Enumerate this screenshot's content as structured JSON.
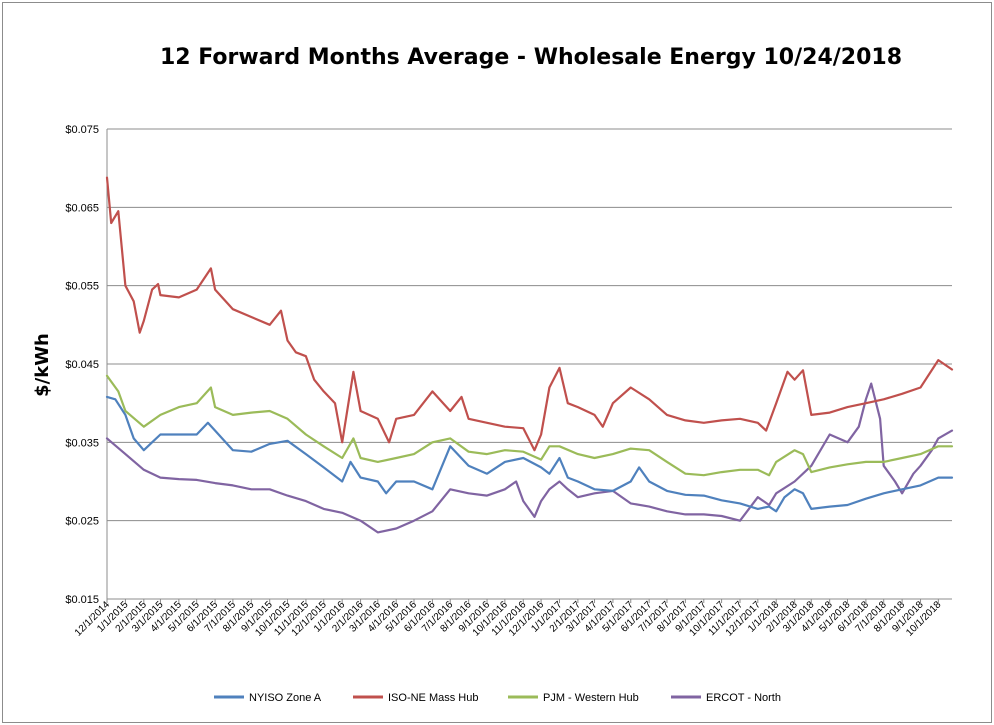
{
  "chart_data": {
    "type": "line",
    "title": "12 Forward Months Average - Wholesale Energy 10/24/2018",
    "ylabel": "$/kWh",
    "xlabel": "",
    "ylim": [
      0.015,
      0.075
    ],
    "y_ticks": [
      "$0.015",
      "$0.025",
      "$0.035",
      "$0.045",
      "$0.055",
      "$0.065",
      "$0.075"
    ],
    "y_tick_values": [
      0.015,
      0.025,
      0.035,
      0.045,
      0.055,
      0.065,
      0.075
    ],
    "xlim": [
      "12/1/2014",
      "10/24/2018"
    ],
    "grid": "horizontal",
    "legend_position": "bottom",
    "categories": [
      "12/1/2014",
      "1/1/2015",
      "2/1/2015",
      "3/1/2015",
      "4/1/2015",
      "5/1/2015",
      "6/1/2015",
      "7/1/2015",
      "8/1/2015",
      "9/1/2015",
      "10/1/2015",
      "11/1/2015",
      "12/1/2015",
      "1/1/2016",
      "2/1/2016",
      "3/1/2016",
      "4/1/2016",
      "5/1/2016",
      "6/1/2016",
      "7/1/2016",
      "8/1/2016",
      "9/1/2016",
      "10/1/2016",
      "11/1/2016",
      "12/1/2016",
      "1/1/2017",
      "2/1/2017",
      "3/1/2017",
      "4/1/2017",
      "5/1/2017",
      "6/1/2017",
      "7/1/2017",
      "8/1/2017",
      "9/1/2017",
      "10/1/2017",
      "11/1/2017",
      "12/1/2017",
      "1/1/2018",
      "2/1/2018",
      "3/1/2018",
      "4/1/2018",
      "5/1/2018",
      "6/1/2018",
      "7/1/2018",
      "8/1/2018",
      "9/1/2018",
      "10/1/2018"
    ],
    "series": [
      {
        "name": "NYISO Zone A",
        "color": "#4f81bd",
        "points": [
          [
            "12/1/2014",
            0.0408
          ],
          [
            "12/15/2014",
            0.0405
          ],
          [
            "1/1/2015",
            0.0385
          ],
          [
            "1/15/2015",
            0.0355
          ],
          [
            "2/1/2015",
            0.034
          ],
          [
            "2/15/2015",
            0.035
          ],
          [
            "3/1/2015",
            0.036
          ],
          [
            "4/1/2015",
            0.036
          ],
          [
            "5/1/2015",
            0.036
          ],
          [
            "5/20/2015",
            0.0375
          ],
          [
            "6/1/2015",
            0.0365
          ],
          [
            "7/1/2015",
            0.034
          ],
          [
            "8/1/2015",
            0.0338
          ],
          [
            "9/1/2015",
            0.0348
          ],
          [
            "10/1/2015",
            0.0352
          ],
          [
            "11/1/2015",
            0.0335
          ],
          [
            "12/1/2015",
            0.0318
          ],
          [
            "1/1/2016",
            0.03
          ],
          [
            "1/15/2016",
            0.0325
          ],
          [
            "2/1/2016",
            0.0305
          ],
          [
            "3/1/2016",
            0.03
          ],
          [
            "3/15/2016",
            0.0285
          ],
          [
            "4/1/2016",
            0.03
          ],
          [
            "5/1/2016",
            0.03
          ],
          [
            "6/1/2016",
            0.029
          ],
          [
            "7/1/2016",
            0.0345
          ],
          [
            "8/1/2016",
            0.032
          ],
          [
            "9/1/2016",
            0.031
          ],
          [
            "10/1/2016",
            0.0325
          ],
          [
            "11/1/2016",
            0.033
          ],
          [
            "12/1/2016",
            0.0318
          ],
          [
            "12/15/2016",
            0.031
          ],
          [
            "1/1/2017",
            0.033
          ],
          [
            "1/15/2017",
            0.0305
          ],
          [
            "2/1/2017",
            0.03
          ],
          [
            "3/1/2017",
            0.029
          ],
          [
            "4/1/2017",
            0.0288
          ],
          [
            "5/1/2017",
            0.03
          ],
          [
            "5/15/2017",
            0.0318
          ],
          [
            "6/1/2017",
            0.03
          ],
          [
            "7/1/2017",
            0.0288
          ],
          [
            "8/1/2017",
            0.0283
          ],
          [
            "9/1/2017",
            0.0282
          ],
          [
            "10/1/2017",
            0.0276
          ],
          [
            "11/1/2017",
            0.0272
          ],
          [
            "12/1/2017",
            0.0265
          ],
          [
            "12/20/2017",
            0.0268
          ],
          [
            "1/1/2018",
            0.0262
          ],
          [
            "1/15/2018",
            0.028
          ],
          [
            "2/1/2018",
            0.029
          ],
          [
            "2/15/2018",
            0.0285
          ],
          [
            "3/1/2018",
            0.0265
          ],
          [
            "4/1/2018",
            0.0268
          ],
          [
            "5/1/2018",
            0.027
          ],
          [
            "6/1/2018",
            0.0278
          ],
          [
            "7/1/2018",
            0.0285
          ],
          [
            "8/1/2018",
            0.029
          ],
          [
            "9/1/2018",
            0.0295
          ],
          [
            "10/1/2018",
            0.0305
          ],
          [
            "10/24/2018",
            0.0305
          ]
        ]
      },
      {
        "name": "ISO-NE Mass Hub",
        "color": "#c0504d",
        "points": [
          [
            "12/1/2014",
            0.0688
          ],
          [
            "12/8/2014",
            0.063
          ],
          [
            "12/20/2014",
            0.0645
          ],
          [
            "1/1/2015",
            0.055
          ],
          [
            "1/15/2015",
            0.053
          ],
          [
            "1/25/2015",
            0.049
          ],
          [
            "2/1/2015",
            0.0505
          ],
          [
            "2/15/2015",
            0.0545
          ],
          [
            "2/25/2015",
            0.0552
          ],
          [
            "3/1/2015",
            0.0538
          ],
          [
            "4/1/2015",
            0.0535
          ],
          [
            "5/1/2015",
            0.0545
          ],
          [
            "5/25/2015",
            0.0572
          ],
          [
            "6/1/2015",
            0.0545
          ],
          [
            "7/1/2015",
            0.052
          ],
          [
            "8/1/2015",
            0.051
          ],
          [
            "9/1/2015",
            0.05
          ],
          [
            "9/20/2015",
            0.0518
          ],
          [
            "10/1/2015",
            0.048
          ],
          [
            "10/15/2015",
            0.0465
          ],
          [
            "11/1/2015",
            0.046
          ],
          [
            "11/15/2015",
            0.043
          ],
          [
            "12/1/2015",
            0.0415
          ],
          [
            "12/20/2015",
            0.04
          ],
          [
            "1/1/2016",
            0.035
          ],
          [
            "1/20/2016",
            0.044
          ],
          [
            "2/1/2016",
            0.039
          ],
          [
            "3/1/2016",
            0.038
          ],
          [
            "3/20/2016",
            0.035
          ],
          [
            "4/1/2016",
            0.038
          ],
          [
            "5/1/2016",
            0.0385
          ],
          [
            "6/1/2016",
            0.0415
          ],
          [
            "7/1/2016",
            0.039
          ],
          [
            "7/20/2016",
            0.0408
          ],
          [
            "8/1/2016",
            0.038
          ],
          [
            "9/1/2016",
            0.0375
          ],
          [
            "10/1/2016",
            0.037
          ],
          [
            "11/1/2016",
            0.0368
          ],
          [
            "11/20/2016",
            0.034
          ],
          [
            "12/1/2016",
            0.036
          ],
          [
            "12/15/2016",
            0.042
          ],
          [
            "1/1/2017",
            0.0445
          ],
          [
            "1/15/2017",
            0.04
          ],
          [
            "2/1/2017",
            0.0395
          ],
          [
            "3/1/2017",
            0.0385
          ],
          [
            "3/15/2017",
            0.037
          ],
          [
            "4/1/2017",
            0.04
          ],
          [
            "5/1/2017",
            0.042
          ],
          [
            "6/1/2017",
            0.0405
          ],
          [
            "7/1/2017",
            0.0385
          ],
          [
            "8/1/2017",
            0.0378
          ],
          [
            "9/1/2017",
            0.0375
          ],
          [
            "10/1/2017",
            0.0378
          ],
          [
            "11/1/2017",
            0.038
          ],
          [
            "12/1/2017",
            0.0375
          ],
          [
            "12/15/2017",
            0.0365
          ],
          [
            "1/1/2018",
            0.04
          ],
          [
            "1/20/2018",
            0.044
          ],
          [
            "2/1/2018",
            0.043
          ],
          [
            "2/15/2018",
            0.0442
          ],
          [
            "3/1/2018",
            0.0385
          ],
          [
            "4/1/2018",
            0.0388
          ],
          [
            "5/1/2018",
            0.0395
          ],
          [
            "6/1/2018",
            0.04
          ],
          [
            "7/1/2018",
            0.0405
          ],
          [
            "8/1/2018",
            0.0412
          ],
          [
            "9/1/2018",
            0.042
          ],
          [
            "10/1/2018",
            0.0455
          ],
          [
            "10/24/2018",
            0.0443
          ]
        ]
      },
      {
        "name": "PJM - Western Hub",
        "color": "#9bbb59",
        "points": [
          [
            "12/1/2014",
            0.0435
          ],
          [
            "12/20/2014",
            0.0415
          ],
          [
            "1/1/2015",
            0.039
          ],
          [
            "2/1/2015",
            0.037
          ],
          [
            "3/1/2015",
            0.0385
          ],
          [
            "4/1/2015",
            0.0395
          ],
          [
            "5/1/2015",
            0.04
          ],
          [
            "5/25/2015",
            0.042
          ],
          [
            "6/1/2015",
            0.0395
          ],
          [
            "7/1/2015",
            0.0385
          ],
          [
            "8/1/2015",
            0.0388
          ],
          [
            "9/1/2015",
            0.039
          ],
          [
            "10/1/2015",
            0.038
          ],
          [
            "11/1/2015",
            0.036
          ],
          [
            "12/1/2015",
            0.0345
          ],
          [
            "1/1/2016",
            0.033
          ],
          [
            "1/20/2016",
            0.0355
          ],
          [
            "2/1/2016",
            0.033
          ],
          [
            "3/1/2016",
            0.0325
          ],
          [
            "4/1/2016",
            0.033
          ],
          [
            "5/1/2016",
            0.0335
          ],
          [
            "6/1/2016",
            0.035
          ],
          [
            "7/1/2016",
            0.0355
          ],
          [
            "8/1/2016",
            0.0338
          ],
          [
            "9/1/2016",
            0.0335
          ],
          [
            "10/1/2016",
            0.034
          ],
          [
            "11/1/2016",
            0.0338
          ],
          [
            "12/1/2016",
            0.0328
          ],
          [
            "12/15/2016",
            0.0345
          ],
          [
            "1/1/2017",
            0.0345
          ],
          [
            "2/1/2017",
            0.0335
          ],
          [
            "3/1/2017",
            0.033
          ],
          [
            "4/1/2017",
            0.0335
          ],
          [
            "5/1/2017",
            0.0342
          ],
          [
            "6/1/2017",
            0.034
          ],
          [
            "7/1/2017",
            0.0325
          ],
          [
            "8/1/2017",
            0.031
          ],
          [
            "9/1/2017",
            0.0308
          ],
          [
            "10/1/2017",
            0.0312
          ],
          [
            "11/1/2017",
            0.0315
          ],
          [
            "12/1/2017",
            0.0315
          ],
          [
            "12/20/2017",
            0.0308
          ],
          [
            "1/1/2018",
            0.0325
          ],
          [
            "2/1/2018",
            0.034
          ],
          [
            "2/15/2018",
            0.0335
          ],
          [
            "3/1/2018",
            0.0312
          ],
          [
            "4/1/2018",
            0.0318
          ],
          [
            "5/1/2018",
            0.0322
          ],
          [
            "6/1/2018",
            0.0325
          ],
          [
            "7/1/2018",
            0.0325
          ],
          [
            "8/1/2018",
            0.033
          ],
          [
            "9/1/2018",
            0.0335
          ],
          [
            "10/1/2018",
            0.0345
          ],
          [
            "10/24/2018",
            0.0345
          ]
        ]
      },
      {
        "name": "ERCOT - North",
        "color": "#8064a2",
        "points": [
          [
            "12/1/2014",
            0.0355
          ],
          [
            "1/1/2015",
            0.0335
          ],
          [
            "2/1/2015",
            0.0315
          ],
          [
            "3/1/2015",
            0.0305
          ],
          [
            "4/1/2015",
            0.0303
          ],
          [
            "5/1/2015",
            0.0302
          ],
          [
            "6/1/2015",
            0.0298
          ],
          [
            "7/1/2015",
            0.0295
          ],
          [
            "8/1/2015",
            0.029
          ],
          [
            "9/1/2015",
            0.029
          ],
          [
            "10/1/2015",
            0.0282
          ],
          [
            "11/1/2015",
            0.0275
          ],
          [
            "12/1/2015",
            0.0265
          ],
          [
            "1/1/2016",
            0.026
          ],
          [
            "2/1/2016",
            0.025
          ],
          [
            "3/1/2016",
            0.0235
          ],
          [
            "4/1/2016",
            0.024
          ],
          [
            "5/1/2016",
            0.025
          ],
          [
            "6/1/2016",
            0.0262
          ],
          [
            "7/1/2016",
            0.029
          ],
          [
            "8/1/2016",
            0.0285
          ],
          [
            "9/1/2016",
            0.0282
          ],
          [
            "10/1/2016",
            0.029
          ],
          [
            "10/20/2016",
            0.03
          ],
          [
            "11/1/2016",
            0.0275
          ],
          [
            "11/20/2016",
            0.0255
          ],
          [
            "12/1/2016",
            0.0275
          ],
          [
            "12/15/2016",
            0.029
          ],
          [
            "1/1/2017",
            0.03
          ],
          [
            "1/15/2017",
            0.029
          ],
          [
            "2/1/2017",
            0.028
          ],
          [
            "3/1/2017",
            0.0285
          ],
          [
            "4/1/2017",
            0.0288
          ],
          [
            "5/1/2017",
            0.0272
          ],
          [
            "6/1/2017",
            0.0268
          ],
          [
            "7/1/2017",
            0.0262
          ],
          [
            "8/1/2017",
            0.0258
          ],
          [
            "9/1/2017",
            0.0258
          ],
          [
            "10/1/2017",
            0.0256
          ],
          [
            "11/1/2017",
            0.025
          ],
          [
            "12/1/2017",
            0.028
          ],
          [
            "12/20/2017",
            0.027
          ],
          [
            "1/1/2018",
            0.0285
          ],
          [
            "2/1/2018",
            0.03
          ],
          [
            "3/1/2018",
            0.032
          ],
          [
            "4/1/2018",
            0.036
          ],
          [
            "5/1/2018",
            0.035
          ],
          [
            "5/20/2018",
            0.037
          ],
          [
            "6/1/2018",
            0.0405
          ],
          [
            "6/10/2018",
            0.0425
          ],
          [
            "6/25/2018",
            0.038
          ],
          [
            "7/1/2018",
            0.032
          ],
          [
            "7/20/2018",
            0.03
          ],
          [
            "8/1/2018",
            0.0285
          ],
          [
            "8/20/2018",
            0.031
          ],
          [
            "9/1/2018",
            0.032
          ],
          [
            "9/20/2018",
            0.034
          ],
          [
            "10/1/2018",
            0.0355
          ],
          [
            "10/24/2018",
            0.0365
          ]
        ]
      }
    ]
  }
}
